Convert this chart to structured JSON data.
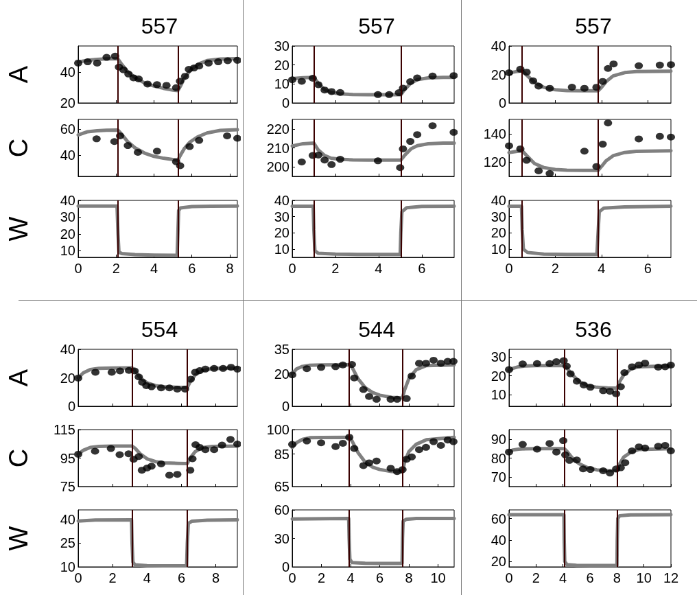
{
  "chart_data": [
    {
      "type": "scatter",
      "title": "557",
      "ylabel": "A",
      "xlim": [
        0,
        8.4
      ],
      "ylim": [
        20,
        57
      ],
      "xticks": [
        0,
        2,
        4,
        6,
        8
      ],
      "yticks": [
        20,
        40
      ],
      "tick_labels": "y",
      "series": [
        {
          "color": "#000000",
          "marker": "circle",
          "x": [
            0,
            0.5,
            1.0,
            1.5,
            1.95,
            2.15,
            2.39,
            2.65,
            2.92,
            3.19,
            3.66,
            4.16,
            4.66,
            5.17,
            5.37,
            5.64,
            5.84,
            6.11,
            6.38,
            6.88,
            7.39,
            7.89,
            8.4
          ],
          "values": [
            45.9,
            46.7,
            45.9,
            49.6,
            50.4,
            43.3,
            41.5,
            38.8,
            36.3,
            35.6,
            32.3,
            31.9,
            31.4,
            29.9,
            34.1,
            37.3,
            41.8,
            42.7,
            44.0,
            45.9,
            46.7,
            47.4,
            47.7
          ]
        },
        {
          "type": "line",
          "color": "#808080",
          "marker": "none",
          "x": [
            0,
            0.5,
            1,
            1.5,
            2.09,
            2.3,
            2.6,
            3,
            3.5,
            4,
            4.5,
            5,
            5.26,
            5.4,
            5.6,
            5.9,
            6.3,
            6.8,
            7.5,
            8.4
          ],
          "values": [
            46.5,
            47.8,
            48.3,
            48.6,
            48.7,
            45,
            40.5,
            36.5,
            33,
            31,
            29.5,
            28.3,
            28,
            31,
            36,
            41,
            45,
            47.5,
            48.5,
            48.7
          ]
        }
      ],
      "ref_lines": [
        {
          "axis": "x",
          "value": 2.09,
          "color": "#3a0000"
        },
        {
          "axis": "x",
          "value": 5.26,
          "color": "#3a0000"
        }
      ]
    },
    {
      "type": "scatter",
      "ylabel": "C",
      "xlim": [
        0,
        8.4
      ],
      "ylim": [
        23.5,
        67.5
      ],
      "xticks": [
        0,
        2,
        4,
        6,
        8
      ],
      "yticks": [
        40,
        60
      ],
      "tick_labels": "y",
      "series": [
        {
          "color": "#000000",
          "marker": "circle",
          "x": [
            0.97,
            1.91,
            2.21,
            2.62,
            3.15,
            4.16,
            5.17,
            5.38,
            5.88,
            6.38,
            7.86,
            8.4
          ],
          "values": [
            52.5,
            50.4,
            54.8,
            47.3,
            42.1,
            43.0,
            34.8,
            31.7,
            46.5,
            51.3,
            54.8,
            52.9
          ]
        },
        {
          "type": "line",
          "color": "#808080",
          "marker": "none",
          "x": [
            0,
            0.5,
            1,
            1.5,
            2.09,
            2.3,
            2.6,
            3,
            3.5,
            4,
            4.5,
            5,
            5.26,
            5.4,
            5.6,
            5.9,
            6.3,
            6.8,
            7.5,
            8.4
          ],
          "values": [
            55.5,
            58,
            58.8,
            59.2,
            59.3,
            56,
            50.5,
            45.5,
            41.5,
            39,
            37.5,
            36.5,
            36,
            40,
            45,
            50,
            54,
            57,
            59,
            59.5
          ]
        }
      ],
      "ref_lines": [
        {
          "axis": "x",
          "value": 2.09,
          "color": "#3a0000"
        },
        {
          "axis": "x",
          "value": 5.26,
          "color": "#3a0000"
        }
      ]
    },
    {
      "type": "line",
      "ylabel": "W",
      "xlim": [
        0,
        8.4
      ],
      "ylim": [
        6,
        40
      ],
      "xticks": [
        0,
        2,
        4,
        6,
        8
      ],
      "yticks": [
        10,
        20,
        30,
        40
      ],
      "series": [
        {
          "color": "#808080",
          "marker": "none",
          "x": [
            0,
            2.05,
            2.1,
            2.15,
            2.3,
            3,
            4,
            5.22,
            5.26,
            5.3,
            5.4,
            6,
            7,
            8.4
          ],
          "values": [
            36.6,
            36.6,
            20,
            9,
            8.3,
            7.6,
            7.3,
            7.2,
            20,
            34,
            35.5,
            36.3,
            36.5,
            36.6
          ]
        }
      ],
      "ref_lines": [
        {
          "axis": "x",
          "value": 2.09,
          "color": "#3a0000"
        },
        {
          "axis": "x",
          "value": 5.26,
          "color": "#3a0000"
        }
      ]
    },
    {
      "type": "scatter",
      "title": "557",
      "xlim": [
        0,
        7.5
      ],
      "ylim": [
        0,
        30
      ],
      "xticks": [
        0,
        2,
        4,
        6
      ],
      "yticks": [
        0,
        10,
        20,
        30
      ],
      "tick_labels": "y",
      "series": [
        {
          "color": "#000000",
          "marker": "circle",
          "x": [
            0,
            0.44,
            0.95,
            1.21,
            1.5,
            1.82,
            2.22,
            3.97,
            4.49,
            4.94,
            5.13,
            5.47,
            5.79,
            6.5,
            7.48
          ],
          "values": [
            12.2,
            11.4,
            13.0,
            9.6,
            6.8,
            6.0,
            5.5,
            4.4,
            4.4,
            5.4,
            7.8,
            11.2,
            13.2,
            14.2,
            14.4
          ]
        },
        {
          "type": "line",
          "color": "#808080",
          "marker": "none",
          "x": [
            0,
            0.5,
            1,
            1.2,
            1.5,
            1.8,
            2.2,
            2.8,
            3.5,
            4.5,
            5.03,
            5.2,
            5.5,
            5.8,
            6.3,
            7,
            7.5
          ],
          "values": [
            12.8,
            13.3,
            13.5,
            10.5,
            7,
            5.5,
            4.8,
            4.4,
            4.3,
            4.3,
            4.3,
            7,
            10.5,
            12.3,
            13.2,
            13.5,
            13.5
          ]
        }
      ],
      "ref_lines": [
        {
          "axis": "x",
          "value": 1.0,
          "color": "#3a0000"
        },
        {
          "axis": "x",
          "value": 5.03,
          "color": "#3a0000"
        }
      ]
    },
    {
      "type": "scatter",
      "xlim": [
        0,
        7.5
      ],
      "ylim": [
        195,
        225
      ],
      "xticks": [
        0,
        2,
        4,
        6
      ],
      "yticks": [
        200,
        210,
        220
      ],
      "tick_labels": "y",
      "series": [
        {
          "color": "#000000",
          "marker": "circle",
          "x": [
            0.44,
            0.95,
            1.21,
            1.5,
            1.82,
            2.22,
            3.97,
            5.0,
            5.13,
            5.47,
            5.79,
            6.5,
            7.48
          ],
          "values": [
            202.6,
            206.0,
            206.2,
            203.6,
            201.2,
            204.0,
            203.2,
            199.6,
            209.5,
            213.4,
            217.0,
            221.7,
            218.2
          ]
        },
        {
          "type": "line",
          "color": "#808080",
          "marker": "none",
          "x": [
            0,
            0.5,
            1,
            1.2,
            1.5,
            1.8,
            2.2,
            2.8,
            3.5,
            4.5,
            5.03,
            5.2,
            5.5,
            5.8,
            6.3,
            7,
            7.5
          ],
          "values": [
            211,
            212.2,
            212.5,
            209,
            206,
            204.6,
            204,
            203.7,
            203.6,
            203.6,
            203.6,
            206,
            209.5,
            211.2,
            212.2,
            212.5,
            212.5
          ]
        }
      ],
      "ref_lines": [
        {
          "axis": "x",
          "value": 1.0,
          "color": "#3a0000"
        },
        {
          "axis": "x",
          "value": 5.03,
          "color": "#3a0000"
        }
      ]
    },
    {
      "type": "line",
      "xlim": [
        0,
        7.5
      ],
      "ylim": [
        5,
        40
      ],
      "xticks": [
        0,
        2,
        4,
        6
      ],
      "yticks": [
        10,
        20,
        30,
        40
      ],
      "series": [
        {
          "color": "#808080",
          "marker": "none",
          "x": [
            0,
            0.97,
            1.0,
            1.05,
            1.2,
            2,
            3,
            4,
            5.0,
            5.03,
            5.08,
            5.3,
            6,
            7.5
          ],
          "values": [
            36.4,
            36.4,
            22,
            9,
            7.5,
            7,
            6.8,
            6.8,
            6.8,
            20,
            33,
            35.5,
            36.3,
            36.4
          ]
        }
      ],
      "ref_lines": [
        {
          "axis": "x",
          "value": 1.0,
          "color": "#3a0000"
        },
        {
          "axis": "x",
          "value": 5.03,
          "color": "#3a0000"
        }
      ]
    },
    {
      "type": "scatter",
      "title": "557",
      "xlim": [
        0,
        7
      ],
      "ylim": [
        0,
        40
      ],
      "xticks": [
        0,
        2,
        4,
        6
      ],
      "yticks": [
        0,
        20,
        40
      ],
      "tick_labels": "y",
      "series": [
        {
          "color": "#000000",
          "marker": "circle",
          "x": [
            0,
            0.49,
            0.76,
            1.04,
            1.28,
            1.76,
            2.72,
            3.26,
            3.78,
            4.05,
            4.28,
            4.52,
            5.61,
            6.52,
            7.0
          ],
          "values": [
            21.2,
            23.7,
            21.6,
            15.5,
            11.8,
            10.3,
            11.1,
            10.3,
            11.0,
            15.1,
            24.2,
            27.4,
            26.1,
            26.6,
            26.9
          ]
        },
        {
          "type": "line",
          "color": "#808080",
          "marker": "none",
          "x": [
            0,
            0.3,
            0.57,
            0.8,
            1.1,
            1.5,
            2,
            2.5,
            3.2,
            3.85,
            4,
            4.2,
            4.5,
            5,
            5.5,
            7
          ],
          "values": [
            21,
            22,
            22.5,
            19,
            14.5,
            11,
            9.3,
            8.7,
            8.5,
            8.5,
            11,
            15,
            19,
            21.3,
            22,
            22.3
          ]
        }
      ],
      "ref_lines": [
        {
          "axis": "x",
          "value": 0.57,
          "color": "#3a0000"
        },
        {
          "axis": "x",
          "value": 3.85,
          "color": "#3a0000"
        }
      ]
    },
    {
      "type": "scatter",
      "xlim": [
        0,
        7
      ],
      "ylim": [
        110,
        150
      ],
      "xticks": [
        0,
        2,
        4,
        6
      ],
      "yticks": [
        120,
        140
      ],
      "tick_labels": "y",
      "series": [
        {
          "color": "#000000",
          "marker": "circle",
          "x": [
            0,
            0.49,
            0.76,
            1.28,
            1.76,
            3.26,
            3.78,
            4.05,
            4.28,
            5.61,
            6.52,
            7.0
          ],
          "values": [
            131.5,
            129.3,
            121.3,
            113.9,
            112.0,
            127.7,
            116.9,
            132.6,
            147.5,
            136.3,
            138.1,
            137.6
          ]
        },
        {
          "type": "line",
          "color": "#808080",
          "marker": "none",
          "x": [
            0,
            0.3,
            0.57,
            0.8,
            1.1,
            1.5,
            2,
            2.5,
            3.2,
            3.85,
            4,
            4.2,
            4.5,
            5,
            5.5,
            7
          ],
          "values": [
            126.7,
            127.5,
            128,
            124,
            119,
            116.2,
            114.8,
            114.3,
            114.2,
            114.2,
            117,
            121,
            124.5,
            126.8,
            127.6,
            128
          ]
        }
      ],
      "ref_lines": [
        {
          "axis": "x",
          "value": 0.57,
          "color": "#3a0000"
        },
        {
          "axis": "x",
          "value": 3.85,
          "color": "#3a0000"
        }
      ]
    },
    {
      "type": "line",
      "xlim": [
        0,
        7
      ],
      "ylim": [
        5,
        40
      ],
      "xticks": [
        0,
        2,
        4,
        6
      ],
      "yticks": [
        10,
        20,
        30,
        40
      ],
      "series": [
        {
          "color": "#808080",
          "marker": "none",
          "x": [
            0,
            0.54,
            0.57,
            0.62,
            0.8,
            1.5,
            2.5,
            3.8,
            3.85,
            3.9,
            4.1,
            5,
            7
          ],
          "values": [
            36.4,
            36.4,
            22,
            10,
            8,
            7,
            6.8,
            6.8,
            20,
            33,
            35.3,
            36,
            36.4
          ]
        }
      ],
      "ref_lines": [
        {
          "axis": "x",
          "value": 0.57,
          "color": "#3a0000"
        },
        {
          "axis": "x",
          "value": 3.85,
          "color": "#3a0000"
        }
      ]
    },
    {
      "type": "scatter",
      "title": "554",
      "ylabel": "A",
      "xlim": [
        0,
        9.25
      ],
      "ylim": [
        0,
        40
      ],
      "xticks": [
        0,
        2,
        4,
        6,
        8
      ],
      "yticks": [
        0,
        20,
        40
      ],
      "tick_labels": "y",
      "series": [
        {
          "color": "#000000",
          "marker": "circle",
          "x": [
            0,
            1.0,
            1.95,
            2.43,
            2.95,
            3.28,
            3.52,
            3.72,
            3.96,
            4.26,
            4.82,
            5.3,
            5.76,
            6.21,
            6.54,
            6.8,
            7.06,
            7.39,
            7.9,
            8.42,
            8.88,
            9.25
          ],
          "values": [
            19.8,
            23.9,
            23.9,
            24.8,
            25.2,
            24.8,
            20.6,
            16.9,
            14.5,
            13.7,
            12.9,
            12.9,
            12.1,
            12.1,
            19.0,
            23.9,
            25.0,
            26.1,
            26.6,
            26.6,
            27.4,
            26.1
          ]
        },
        {
          "type": "line",
          "color": "#808080",
          "marker": "none",
          "x": [
            0,
            0.3,
            0.7,
            1.2,
            2,
            3.13,
            3.3,
            3.6,
            4,
            4.5,
            5,
            5.8,
            6.34,
            6.5,
            6.8,
            7.2,
            7.8,
            9.25
          ],
          "values": [
            20,
            23.5,
            25.8,
            26.6,
            26.9,
            27,
            25,
            20,
            16.5,
            14.5,
            13.7,
            13.3,
            13.2,
            17,
            22,
            25,
            26.5,
            26.9
          ]
        }
      ],
      "ref_lines": [
        {
          "axis": "x",
          "value": 3.13,
          "color": "#3a0000"
        },
        {
          "axis": "x",
          "value": 6.34,
          "color": "#3a0000"
        }
      ]
    },
    {
      "type": "scatter",
      "ylabel": "C",
      "xlim": [
        0,
        9.25
      ],
      "ylim": [
        75,
        115
      ],
      "xticks": [
        0,
        2,
        4,
        6,
        8
      ],
      "yticks": [
        75,
        95,
        115
      ],
      "tick_labels": "y",
      "series": [
        {
          "color": "#000000",
          "marker": "circle",
          "x": [
            0,
            0.98,
            1.9,
            2.41,
            2.93,
            3.22,
            3.52,
            3.7,
            4.0,
            4.26,
            4.82,
            5.3,
            5.76,
            6.38,
            6.51,
            6.64,
            6.82,
            7.06,
            7.39,
            7.9,
            8.36,
            8.85,
            9.25
          ],
          "values": [
            97.7,
            99.8,
            101.7,
            97.4,
            98.0,
            94.2,
            96.1,
            86.5,
            88.0,
            89.3,
            90.9,
            83.0,
            83.6,
            null,
            86.5,
            94.5,
            104.4,
            102.5,
            100.9,
            100.9,
            104.1,
            108.1,
            104.9
          ]
        },
        {
          "type": "line",
          "color": "#808080",
          "marker": "none",
          "x": [
            0,
            0.3,
            0.7,
            1.2,
            2,
            3.13,
            3.3,
            3.6,
            4,
            4.5,
            5,
            5.8,
            6.34,
            6.5,
            6.8,
            7.2,
            7.8,
            9.25
          ],
          "values": [
            97.7,
            100.5,
            102.5,
            103.2,
            103.4,
            103.4,
            102,
            98,
            94.5,
            92.5,
            91.6,
            91.3,
            91.2,
            95,
            99.5,
            102.3,
            103.2,
            103.4
          ]
        }
      ],
      "ref_lines": [
        {
          "axis": "x",
          "value": 3.13,
          "color": "#3a0000"
        },
        {
          "axis": "x",
          "value": 6.34,
          "color": "#3a0000"
        }
      ]
    },
    {
      "type": "line",
      "ylabel": "W",
      "xlim": [
        0,
        9.25
      ],
      "ylim": [
        10,
        46
      ],
      "xticks": [
        0,
        2,
        4,
        6,
        8
      ],
      "yticks": [
        10,
        25,
        40
      ],
      "series": [
        {
          "color": "#808080",
          "marker": "none",
          "x": [
            0,
            1,
            3.1,
            3.13,
            3.18,
            3.3,
            4,
            5,
            6.3,
            6.34,
            6.4,
            6.6,
            7.5,
            9.25
          ],
          "values": [
            39,
            39.6,
            39.7,
            25,
            13,
            11.3,
            10.8,
            10.6,
            10.6,
            25,
            37.5,
            38.8,
            39.5,
            39.7
          ]
        }
      ],
      "ref_lines": [
        {
          "axis": "x",
          "value": 3.13,
          "color": "#3a0000"
        },
        {
          "axis": "x",
          "value": 6.34,
          "color": "#3a0000"
        }
      ]
    },
    {
      "type": "scatter",
      "title": "544",
      "xlim": [
        0,
        11.1
      ],
      "ylim": [
        0,
        35
      ],
      "xticks": [
        0,
        2,
        4,
        6,
        8,
        10
      ],
      "yticks": [
        0,
        20,
        35
      ],
      "tick_labels": "y",
      "series": [
        {
          "color": "#000000",
          "marker": "circle",
          "x": [
            0,
            1.0,
            1.98,
            2.97,
            3.47,
            4.09,
            4.25,
            4.88,
            5.27,
            5.78,
            6.75,
            7.19,
            7.56,
            7.84,
            8.19,
            8.7,
            9.17,
            9.69,
            10.19,
            10.66,
            11.05
          ],
          "values": [
            19.3,
            23.1,
            23.9,
            24.3,
            25.4,
            25.7,
            17.4,
            10.3,
            6.0,
            4.3,
            4.3,
            4.3,
            null,
            4.7,
            18.6,
            26.4,
            26.4,
            28.3,
            26.4,
            27.6,
            27.6
          ]
        },
        {
          "type": "line",
          "color": "#808080",
          "marker": "none",
          "x": [
            0,
            0.3,
            0.7,
            1.2,
            2,
            3.9,
            4.1,
            4.5,
            5,
            5.5,
            6,
            6.8,
            7.56,
            7.7,
            8,
            8.5,
            9.2,
            11.1
          ],
          "values": [
            20,
            23,
            24.5,
            25.2,
            25.4,
            25.5,
            24,
            17,
            11.5,
            8.5,
            6.8,
            5.5,
            5.2,
            10,
            17,
            22.5,
            25,
            25.4
          ]
        }
      ],
      "ref_lines": [
        {
          "axis": "x",
          "value": 3.9,
          "color": "#3a0000"
        },
        {
          "axis": "x",
          "value": 7.56,
          "color": "#3a0000"
        }
      ]
    },
    {
      "type": "scatter",
      "xlim": [
        0,
        11.1
      ],
      "ylim": [
        65,
        100
      ],
      "xticks": [
        0,
        2,
        4,
        6,
        8,
        10
      ],
      "yticks": [
        65,
        85,
        100
      ],
      "tick_labels": "y",
      "series": [
        {
          "color": "#000000",
          "marker": "circle",
          "x": [
            0,
            1.0,
            1.98,
            2.97,
            3.47,
            3.91,
            4.25,
            4.88,
            5.27,
            5.78,
            6.75,
            7.19,
            7.56,
            7.84,
            8.19,
            8.7,
            9.17,
            9.69,
            10.19,
            10.66,
            11.05
          ],
          "values": [
            90.9,
            93.0,
            91.9,
            89.6,
            91.6,
            95.3,
            88.4,
            77.9,
            79.6,
            80.7,
            76.2,
            74.2,
            75.4,
            81.8,
            83.2,
            87.7,
            89.1,
            92.6,
            90.3,
            93.6,
            92.6
          ]
        },
        {
          "type": "line",
          "color": "#808080",
          "marker": "none",
          "x": [
            0,
            0.3,
            0.7,
            1.2,
            2,
            3.9,
            4.1,
            4.5,
            5,
            5.5,
            6,
            6.8,
            7.56,
            7.7,
            8,
            8.5,
            9.2,
            11.1
          ],
          "values": [
            89,
            92,
            94,
            95,
            95.2,
            95.3,
            93,
            86,
            80,
            77,
            75.5,
            74.3,
            74,
            80,
            86.5,
            91,
            93.8,
            95.3
          ]
        }
      ],
      "ref_lines": [
        {
          "axis": "x",
          "value": 3.9,
          "color": "#3a0000"
        },
        {
          "axis": "x",
          "value": 7.56,
          "color": "#3a0000"
        }
      ]
    },
    {
      "type": "line",
      "xlim": [
        0,
        11.1
      ],
      "ylim": [
        0,
        60
      ],
      "xticks": [
        0,
        2,
        4,
        6,
        8,
        10
      ],
      "yticks": [
        0,
        30,
        60
      ],
      "series": [
        {
          "color": "#808080",
          "marker": "none",
          "x": [
            0,
            3.87,
            3.9,
            3.95,
            4.1,
            5,
            6,
            7.53,
            7.56,
            7.6,
            7.8,
            8.5,
            11.1
          ],
          "values": [
            50.5,
            51,
            30,
            8,
            4.5,
            3.8,
            3.6,
            3.6,
            30,
            48,
            50,
            51,
            51
          ]
        }
      ],
      "ref_lines": [
        {
          "axis": "x",
          "value": 3.9,
          "color": "#3a0000"
        },
        {
          "axis": "x",
          "value": 7.56,
          "color": "#3a0000"
        }
      ]
    },
    {
      "type": "scatter",
      "title": "536",
      "xlim": [
        0,
        12
      ],
      "ylim": [
        4,
        34
      ],
      "xticks": [
        0,
        2,
        4,
        6,
        8,
        10,
        12
      ],
      "yticks": [
        10,
        20,
        30
      ],
      "tick_labels": "y",
      "series": [
        {
          "color": "#000000",
          "marker": "circle",
          "x": [
            0,
            1.01,
            2.08,
            3.01,
            3.51,
            4.05,
            4.27,
            4.56,
            5.03,
            5.54,
            6.03,
            6.98,
            7.48,
            7.94,
            8.28,
            8.56,
            9.12,
            9.63,
            10.08,
            11.06,
            11.57,
            11.99
          ],
          "values": [
            23.3,
            26.3,
            26.5,
            26.5,
            27.5,
            28.0,
            25.1,
            21.1,
            17.2,
            15.2,
            14.0,
            12.2,
            11.9,
            10.6,
            14.3,
            21.7,
            24.8,
            25.8,
            26.7,
            24.6,
            24.8,
            25.7
          ]
        },
        {
          "type": "line",
          "color": "#808080",
          "marker": "none",
          "x": [
            0,
            0.3,
            0.7,
            1.2,
            2,
            4.09,
            4.3,
            4.7,
            5.2,
            5.8,
            6.5,
            7.3,
            8.02,
            8.2,
            8.5,
            9,
            9.6,
            12
          ],
          "values": [
            23,
            24,
            24.8,
            25.2,
            25.4,
            25.4,
            24,
            20.5,
            17,
            15,
            14,
            13.7,
            13.6,
            17,
            20.5,
            23.5,
            24.8,
            25.3
          ]
        }
      ],
      "ref_lines": [
        {
          "axis": "x",
          "value": 4.09,
          "color": "#3a0000"
        },
        {
          "axis": "x",
          "value": 8.02,
          "color": "#3a0000"
        }
      ]
    },
    {
      "type": "scatter",
      "xlim": [
        0,
        12
      ],
      "ylim": [
        65,
        95
      ],
      "xticks": [
        0,
        2,
        4,
        6,
        8,
        10,
        12
      ],
      "yticks": [
        70,
        80,
        90
      ],
      "tick_labels": "y",
      "series": [
        {
          "color": "#000000",
          "marker": "circle",
          "x": [
            0,
            1.01,
            2.08,
            3.01,
            3.51,
            4.02,
            4.17,
            4.48,
            5.02,
            5.49,
            6.03,
            6.98,
            7.48,
            7.94,
            8.28,
            8.61,
            9.12,
            9.63,
            10.08,
            11.06,
            11.57,
            11.99
          ],
          "values": [
            83.2,
            87.2,
            84.7,
            87.7,
            83.2,
            89.2,
            81.7,
            78.8,
            79.0,
            74.3,
            74.0,
            73.3,
            72.1,
            74.3,
            74.9,
            77.6,
            83.8,
            85.9,
            85.3,
            86.2,
            86.7,
            83.8
          ]
        },
        {
          "type": "line",
          "color": "#808080",
          "marker": "none",
          "x": [
            0,
            0.3,
            0.7,
            1.2,
            2,
            4.09,
            4.3,
            4.7,
            5.2,
            5.8,
            6.5,
            7.3,
            8.02,
            8.2,
            8.5,
            9,
            9.6,
            12
          ],
          "values": [
            83.5,
            84.3,
            84.7,
            84.9,
            85,
            85,
            83.5,
            80,
            77,
            75,
            73.8,
            73.4,
            73.3,
            77,
            80.5,
            83,
            84.5,
            85
          ]
        }
      ],
      "ref_lines": [
        {
          "axis": "x",
          "value": 4.09,
          "color": "#3a0000"
        },
        {
          "axis": "x",
          "value": 8.02,
          "color": "#3a0000"
        }
      ]
    },
    {
      "type": "line",
      "xlim": [
        0,
        12
      ],
      "ylim": [
        15,
        68
      ],
      "xticks": [
        0,
        2,
        4,
        6,
        8,
        10,
        12
      ],
      "yticks": [
        20,
        40,
        60
      ],
      "series": [
        {
          "color": "#808080",
          "marker": "none",
          "x": [
            0,
            4.07,
            4.09,
            4.13,
            4.3,
            5,
            6,
            8.0,
            8.02,
            8.06,
            8.2,
            9,
            12
          ],
          "values": [
            63.5,
            63.5,
            40,
            20,
            17,
            16.5,
            16.3,
            16.3,
            40,
            60,
            62.5,
            63.3,
            63.5
          ]
        }
      ],
      "ref_lines": [
        {
          "axis": "x",
          "value": 4.09,
          "color": "#3a0000"
        },
        {
          "axis": "x",
          "value": 8.02,
          "color": "#3a0000"
        }
      ]
    }
  ]
}
